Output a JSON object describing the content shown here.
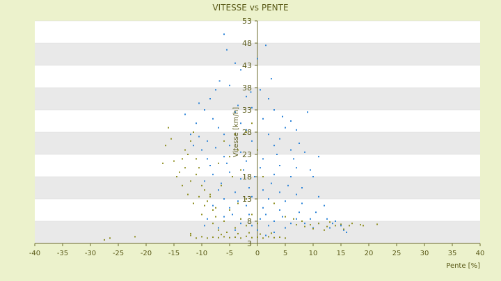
{
  "chart_data": {
    "type": "scatter",
    "title": "VITESSE vs PENTE",
    "xlabel": "Pente [%]",
    "ylabel": "Vitesse [km/h]",
    "xlim": [
      -40,
      40
    ],
    "ylim": [
      3,
      53
    ],
    "x_ticks": [
      -40,
      -35,
      -30,
      -25,
      -20,
      -15,
      -10,
      -5,
      0,
      5,
      10,
      15,
      20,
      25,
      30,
      35,
      40
    ],
    "y_ticks": [
      3,
      8,
      13,
      18,
      23,
      28,
      33,
      38,
      43,
      48,
      53
    ],
    "y_axis_position": "x=0",
    "background_bands": "alternating white / light gray",
    "series": [
      {
        "color": "#2f85d8",
        "points": [
          [
            -6,
            50
          ],
          [
            -5.5,
            46.5
          ],
          [
            -4,
            43.5
          ],
          [
            1.5,
            47.5
          ],
          [
            0,
            44.5
          ],
          [
            -3,
            42
          ],
          [
            2.5,
            40
          ],
          [
            -7.5,
            37.5
          ],
          [
            -6.8,
            39.5
          ],
          [
            -5,
            38.5
          ],
          [
            -8.5,
            35.5
          ],
          [
            -2,
            36
          ],
          [
            0.5,
            37.5
          ],
          [
            -1.2,
            37
          ],
          [
            -13,
            32
          ],
          [
            -10.5,
            34.5
          ],
          [
            -9.5,
            33
          ],
          [
            9,
            32.5
          ],
          [
            4.5,
            31.5
          ],
          [
            -3.5,
            34
          ],
          [
            2,
            35.5
          ],
          [
            -11,
            30
          ],
          [
            -8,
            31
          ],
          [
            -4,
            32.5
          ],
          [
            -1,
            33.5
          ],
          [
            3,
            33
          ],
          [
            6,
            30.5
          ],
          [
            -12,
            27.5
          ],
          [
            -10.5,
            27
          ],
          [
            -7,
            29
          ],
          [
            -3,
            30
          ],
          [
            1,
            31
          ],
          [
            5,
            29
          ],
          [
            7,
            28.5
          ],
          [
            -11.5,
            25
          ],
          [
            -9,
            26
          ],
          [
            -6,
            27.5
          ],
          [
            -2,
            28.5
          ],
          [
            2,
            27.5
          ],
          [
            4,
            26.5
          ],
          [
            7.5,
            25.5
          ],
          [
            -10,
            24
          ],
          [
            -7.5,
            24.5
          ],
          [
            -5,
            25
          ],
          [
            -1,
            26
          ],
          [
            3,
            25
          ],
          [
            6,
            24
          ],
          [
            8.5,
            23.5
          ],
          [
            -9,
            22
          ],
          [
            -6,
            22.5
          ],
          [
            -3,
            23.5
          ],
          [
            0,
            24
          ],
          [
            3.5,
            23
          ],
          [
            6.5,
            22
          ],
          [
            11,
            22.5
          ],
          [
            -8.5,
            20.5
          ],
          [
            -5.5,
            21
          ],
          [
            -2,
            21.5
          ],
          [
            1,
            22
          ],
          [
            4,
            20.5
          ],
          [
            7,
            20
          ],
          [
            9.5,
            19.5
          ],
          [
            -8,
            18.5
          ],
          [
            -5,
            19
          ],
          [
            -2.5,
            19.5
          ],
          [
            0.5,
            20
          ],
          [
            3,
            18.5
          ],
          [
            6,
            18
          ],
          [
            10,
            18
          ],
          [
            -9.5,
            17
          ],
          [
            -6.5,
            16.5
          ],
          [
            -3,
            17.5
          ],
          [
            -0.5,
            18
          ],
          [
            2.5,
            16.5
          ],
          [
            5.5,
            16
          ],
          [
            8,
            15.5
          ],
          [
            -7,
            15
          ],
          [
            -4,
            14.5
          ],
          [
            -1.5,
            15.5
          ],
          [
            1,
            15
          ],
          [
            4,
            14.5
          ],
          [
            7,
            14
          ],
          [
            11,
            13.5
          ],
          [
            -6,
            13
          ],
          [
            -3.5,
            12.5
          ],
          [
            -1,
            13.5
          ],
          [
            2,
            13
          ],
          [
            5,
            12.5
          ],
          [
            8,
            12
          ],
          [
            12,
            11.5
          ],
          [
            -8,
            11.5
          ],
          [
            -5,
            11
          ],
          [
            -2,
            11.5
          ],
          [
            1,
            11
          ],
          [
            4,
            10.5
          ],
          [
            7.5,
            10
          ],
          [
            10.5,
            10
          ],
          [
            -4.5,
            9.5
          ],
          [
            -1.5,
            9.5
          ],
          [
            1.5,
            9.5
          ],
          [
            4.5,
            9
          ],
          [
            7,
            8.5
          ],
          [
            9.5,
            8.5
          ],
          [
            12.5,
            8.5
          ],
          [
            -9,
            8.5
          ],
          [
            -6,
            9
          ],
          [
            -3,
            8.5
          ],
          [
            0.5,
            8.5
          ],
          [
            3,
            8
          ],
          [
            6,
            7.5
          ],
          [
            8.5,
            7.5
          ],
          [
            11,
            7.5
          ],
          [
            13.5,
            7.5
          ],
          [
            15,
            7
          ],
          [
            14,
            8
          ],
          [
            15.5,
            6
          ],
          [
            16,
            5.5
          ],
          [
            13,
            6.5
          ],
          [
            10,
            6.5
          ],
          [
            -3,
            7.5
          ],
          [
            -1,
            7
          ],
          [
            2,
            7
          ],
          [
            5,
            6.5
          ],
          [
            -7,
            6.5
          ],
          [
            -4,
            6
          ],
          [
            0,
            6
          ],
          [
            3,
            5.5
          ],
          [
            -9.5,
            7
          ],
          [
            -5.5,
            5.5
          ],
          [
            1.5,
            4.8
          ]
        ]
      },
      {
        "color": "#8f8f22",
        "points": [
          [
            -27.5,
            3.8
          ],
          [
            -26.5,
            4.2
          ],
          [
            -22,
            4.5
          ],
          [
            -16,
            29
          ],
          [
            -15.5,
            26.5
          ],
          [
            -16.5,
            25
          ],
          [
            -17,
            21
          ],
          [
            -15,
            21.5
          ],
          [
            -14.5,
            18
          ],
          [
            -13.5,
            22
          ],
          [
            -13,
            20
          ],
          [
            -14,
            19
          ],
          [
            -13,
            24
          ],
          [
            -12,
            26
          ],
          [
            -11.5,
            28
          ],
          [
            -12.5,
            23
          ],
          [
            -11,
            22
          ],
          [
            -10.5,
            20
          ],
          [
            -11,
            18.5
          ],
          [
            -12,
            17
          ],
          [
            -10,
            16
          ],
          [
            -9.5,
            15
          ],
          [
            -10.5,
            13.5
          ],
          [
            -9,
            12.5
          ],
          [
            -8.5,
            14
          ],
          [
            -8,
            10.5
          ],
          [
            -7.5,
            9
          ],
          [
            -8,
            7.5
          ],
          [
            -7,
            6
          ],
          [
            -6.5,
            5
          ],
          [
            -12,
            4.8
          ],
          [
            -11,
            4.2
          ],
          [
            -12,
            5.2
          ],
          [
            -10,
            4.5
          ],
          [
            -9,
            4.2
          ],
          [
            -8,
            4.4
          ],
          [
            -7,
            4.3
          ],
          [
            -6,
            4.5
          ],
          [
            -5,
            4.3
          ],
          [
            -4,
            4.4
          ],
          [
            -3,
            4.2
          ],
          [
            -2,
            4.6
          ],
          [
            -1,
            4.3
          ],
          [
            0,
            4.4
          ],
          [
            1,
            4.2
          ],
          [
            2,
            4.5
          ],
          [
            3,
            4.3
          ],
          [
            4,
            4.4
          ],
          [
            5,
            4.2
          ],
          [
            -5.5,
            5.5
          ],
          [
            -3.5,
            5.2
          ],
          [
            -1.5,
            5.4
          ],
          [
            0.5,
            5.1
          ],
          [
            2.5,
            5.3
          ],
          [
            -4,
            6.5
          ],
          [
            -2,
            7
          ],
          [
            0,
            7.5
          ],
          [
            -6,
            8
          ],
          [
            -3,
            8.5
          ],
          [
            -1,
            9.5
          ],
          [
            -5,
            10.5
          ],
          [
            -3.5,
            12
          ],
          [
            -2,
            13
          ],
          [
            -6.5,
            16
          ],
          [
            -4.5,
            18
          ],
          [
            -3,
            19.5
          ],
          [
            -7,
            21
          ],
          [
            -5,
            22.5
          ],
          [
            -3.5,
            24
          ],
          [
            -6,
            26
          ],
          [
            -4,
            27.5
          ],
          [
            -2,
            28
          ],
          [
            -1,
            30
          ],
          [
            0,
            24
          ],
          [
            1,
            18
          ],
          [
            3,
            12
          ],
          [
            5,
            9
          ],
          [
            6.5,
            8.5
          ],
          [
            8,
            8
          ],
          [
            9.5,
            7.2
          ],
          [
            11,
            7.5
          ],
          [
            12.5,
            6.8
          ],
          [
            13,
            7.8
          ],
          [
            14,
            7
          ],
          [
            15,
            7.3
          ],
          [
            16.5,
            7
          ],
          [
            17,
            7.5
          ],
          [
            18.5,
            7.2
          ],
          [
            19,
            7
          ],
          [
            21.5,
            7.3
          ],
          [
            15.5,
            6.2
          ],
          [
            12,
            6
          ],
          [
            10,
            6.3
          ],
          [
            8.5,
            6.8
          ],
          [
            7,
            7.2
          ],
          [
            -7.5,
            11
          ],
          [
            -8.5,
            13.5
          ],
          [
            -9.5,
            11.5
          ],
          [
            -10,
            9.5
          ],
          [
            -11.5,
            12
          ],
          [
            -12.5,
            14
          ],
          [
            -13.5,
            16
          ]
        ]
      }
    ]
  }
}
